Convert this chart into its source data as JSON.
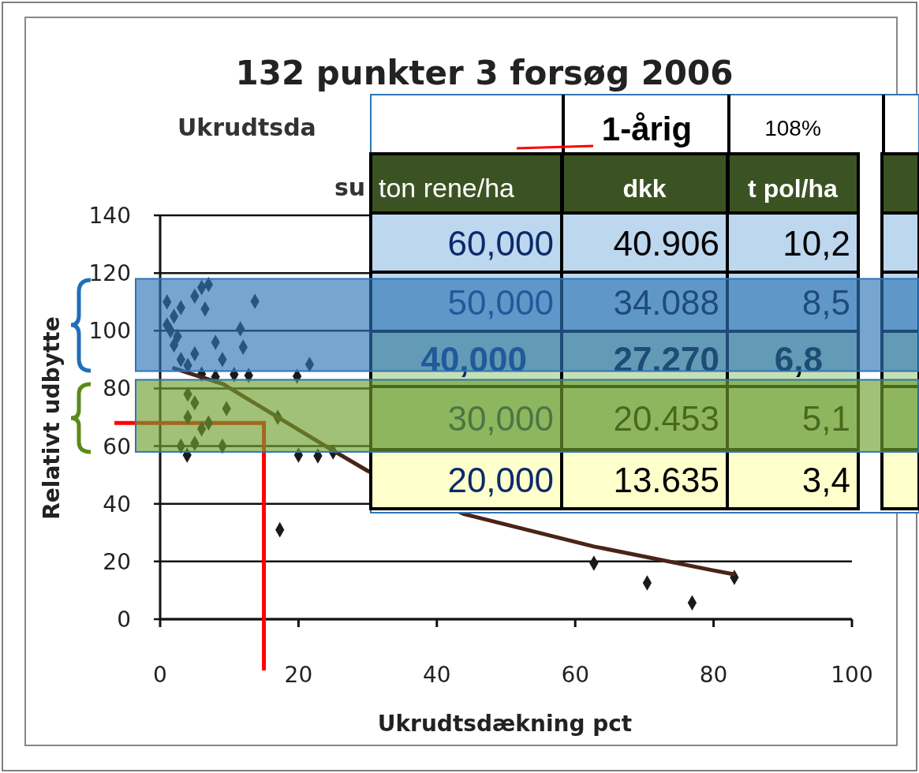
{
  "chart_data": {
    "type": "scatter",
    "title": "132 punkter 3 forsøg 2006",
    "subtitle": "Ukrudtsda\nsu",
    "xlabel": "Ukrudtsdækning pct",
    "ylabel": "Relativt udbytte",
    "xlim": [
      0,
      100
    ],
    "xticks": [
      0,
      20,
      40,
      60,
      80,
      100
    ],
    "ylim": [
      0,
      140
    ],
    "yticks": [
      0,
      20,
      40,
      60,
      80,
      100,
      120,
      140
    ],
    "grid": "y",
    "series": [
      {
        "color": "#1a1a1a",
        "marker": "diamond",
        "x": [
          17.3,
          62.7,
          70.4,
          76.9,
          83,
          21.6,
          19.8,
          13.7,
          6.5,
          11.6,
          12,
          9.6,
          20,
          22.8,
          3.9,
          12.8,
          10.7,
          1,
          2,
          1.5,
          2,
          3,
          4,
          1,
          2.5,
          5,
          6,
          3,
          6,
          7,
          5,
          8,
          9,
          8,
          4,
          5,
          4,
          6,
          7,
          3,
          5,
          9,
          17,
          25
        ],
        "values": [
          31,
          19.4,
          12.6,
          5.7,
          14.5,
          88.3,
          84.2,
          110.2,
          107.5,
          100.6,
          94.3,
          73,
          56.9,
          56.6,
          56.9,
          84.5,
          84.8,
          110,
          105,
          100,
          95,
          90,
          88,
          102,
          98,
          92,
          85,
          108,
          115,
          116,
          112,
          96,
          90,
          84,
          78,
          75,
          70,
          66,
          68,
          60,
          61,
          60,
          70,
          58
        ]
      },
      {
        "type": "line",
        "color": "#4a2418",
        "x": [
          2,
          9.1,
          24.4,
          30,
          44,
          62.7,
          79.8,
          82.9
        ],
        "values": [
          87,
          81.5,
          59.3,
          51.4,
          36.4,
          25.2,
          17,
          15.6
        ]
      }
    ],
    "ref_lines": [
      {
        "axis": "y",
        "value": 68,
        "color": "#ff0000"
      },
      {
        "axis": "x",
        "value": 15,
        "color": "#ff0000"
      }
    ],
    "bands": [
      {
        "axis": "y",
        "from": 86,
        "to": 118,
        "color": "#2e75b6"
      },
      {
        "axis": "y",
        "from": 58,
        "to": 83,
        "color": "#70a030"
      }
    ],
    "annotations": [
      "1-årig",
      "108%",
      "ton rene/ha",
      "dkk",
      "t pol/ha",
      "60,000",
      "40.906",
      "10,2",
      "50,000",
      "34.088",
      "8,5",
      "40,000",
      "27.270",
      "6,8",
      "30,000",
      "20.453",
      "5,1",
      "20,000",
      "13.635",
      "3,4"
    ]
  }
}
